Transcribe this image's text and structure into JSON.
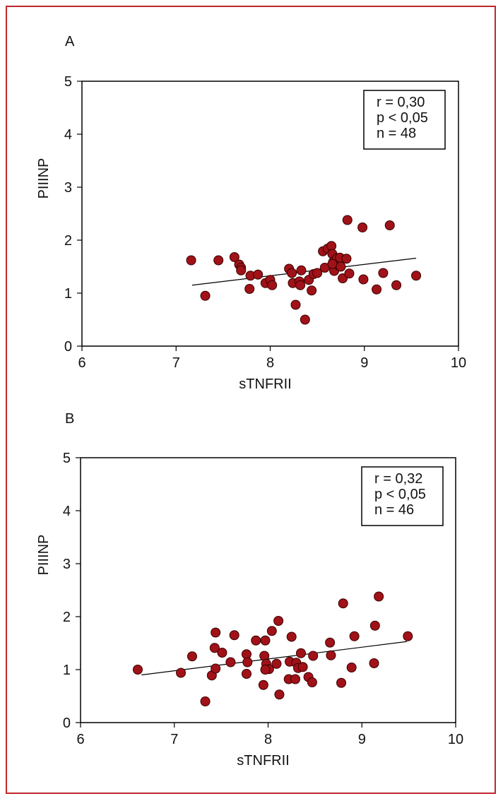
{
  "colors": {
    "frame": "#c0272d",
    "marker_fill": "#a01218",
    "marker_stroke": "#3a0000",
    "axis": "#000000"
  },
  "chart_data": [
    {
      "panel": "A",
      "type": "scatter",
      "xlabel": "sTNFRII",
      "ylabel": "PIIINP",
      "xlim": [
        6,
        10
      ],
      "ylim": [
        0,
        5
      ],
      "xticks": [
        6,
        7,
        8,
        9,
        10
      ],
      "yticks": [
        0,
        1,
        2,
        3,
        4,
        5
      ],
      "stats": [
        "r = 0,30",
        "p < 0,05",
        "n = 48"
      ],
      "fit_line": {
        "x": [
          7.17,
          9.55
        ],
        "y": [
          1.15,
          1.66
        ]
      },
      "points": [
        [
          7.16,
          1.62
        ],
        [
          7.31,
          0.95
        ],
        [
          7.45,
          1.62
        ],
        [
          7.62,
          1.68
        ],
        [
          7.67,
          1.54
        ],
        [
          7.69,
          1.48
        ],
        [
          7.69,
          1.43
        ],
        [
          7.78,
          1.08
        ],
        [
          7.79,
          1.33
        ],
        [
          7.87,
          1.35
        ],
        [
          7.95,
          1.19
        ],
        [
          8.0,
          1.25
        ],
        [
          8.02,
          1.15
        ],
        [
          8.2,
          1.46
        ],
        [
          8.23,
          1.38
        ],
        [
          8.24,
          1.19
        ],
        [
          8.27,
          0.78
        ],
        [
          8.31,
          1.22
        ],
        [
          8.32,
          1.15
        ],
        [
          8.33,
          1.43
        ],
        [
          8.37,
          0.5
        ],
        [
          8.41,
          1.25
        ],
        [
          8.44,
          1.05
        ],
        [
          8.46,
          1.36
        ],
        [
          8.5,
          1.38
        ],
        [
          8.56,
          1.79
        ],
        [
          8.58,
          1.48
        ],
        [
          8.61,
          1.84
        ],
        [
          8.65,
          1.89
        ],
        [
          8.66,
          1.74
        ],
        [
          8.67,
          1.59
        ],
        [
          8.68,
          1.42
        ],
        [
          8.71,
          1.66
        ],
        [
          8.73,
          1.52
        ],
        [
          8.74,
          1.67
        ],
        [
          8.77,
          1.28
        ],
        [
          8.81,
          1.65
        ],
        [
          8.82,
          2.38
        ],
        [
          8.84,
          1.37
        ],
        [
          8.98,
          2.24
        ],
        [
          8.99,
          1.26
        ],
        [
          9.13,
          1.07
        ],
        [
          9.2,
          1.38
        ],
        [
          9.27,
          2.28
        ],
        [
          9.34,
          1.15
        ],
        [
          9.55,
          1.33
        ],
        [
          8.66,
          1.55
        ],
        [
          8.75,
          1.5
        ]
      ]
    },
    {
      "panel": "B",
      "type": "scatter",
      "xlabel": "sTNFRII",
      "ylabel": "PIIINP",
      "xlim": [
        6,
        10
      ],
      "ylim": [
        0,
        5
      ],
      "xticks": [
        6,
        7,
        8,
        9,
        10
      ],
      "yticks": [
        0,
        1,
        2,
        3,
        4,
        5
      ],
      "stats": [
        "r = 0,32",
        "p < 0,05",
        "n = 46"
      ],
      "fit_line": {
        "x": [
          6.65,
          9.48
        ],
        "y": [
          0.9,
          1.53
        ]
      },
      "points": [
        [
          6.61,
          1.0
        ],
        [
          7.07,
          0.94
        ],
        [
          7.19,
          1.25
        ],
        [
          7.33,
          0.4
        ],
        [
          7.4,
          0.89
        ],
        [
          7.43,
          1.41
        ],
        [
          7.44,
          1.02
        ],
        [
          7.44,
          1.7
        ],
        [
          7.51,
          1.32
        ],
        [
          7.6,
          1.14
        ],
        [
          7.64,
          1.65
        ],
        [
          7.77,
          1.29
        ],
        [
          7.77,
          0.92
        ],
        [
          7.78,
          1.14
        ],
        [
          7.87,
          1.55
        ],
        [
          7.95,
          0.71
        ],
        [
          7.96,
          1.26
        ],
        [
          7.97,
          1.55
        ],
        [
          7.98,
          1.11
        ],
        [
          8.01,
          1.01
        ],
        [
          8.04,
          1.73
        ],
        [
          8.09,
          1.11
        ],
        [
          8.11,
          1.92
        ],
        [
          8.12,
          0.53
        ],
        [
          8.22,
          0.82
        ],
        [
          8.23,
          1.15
        ],
        [
          8.25,
          1.62
        ],
        [
          8.29,
          0.82
        ],
        [
          8.3,
          1.13
        ],
        [
          8.32,
          1.03
        ],
        [
          8.35,
          1.31
        ],
        [
          8.37,
          1.05
        ],
        [
          8.43,
          0.86
        ],
        [
          8.47,
          0.76
        ],
        [
          8.48,
          1.26
        ],
        [
          8.66,
          1.51
        ],
        [
          8.67,
          1.27
        ],
        [
          8.78,
          0.75
        ],
        [
          8.8,
          2.25
        ],
        [
          8.89,
          1.04
        ],
        [
          8.92,
          1.63
        ],
        [
          9.13,
          1.12
        ],
        [
          9.14,
          1.83
        ],
        [
          9.18,
          2.38
        ],
        [
          9.49,
          1.63
        ],
        [
          7.97,
          1.0
        ]
      ]
    }
  ]
}
